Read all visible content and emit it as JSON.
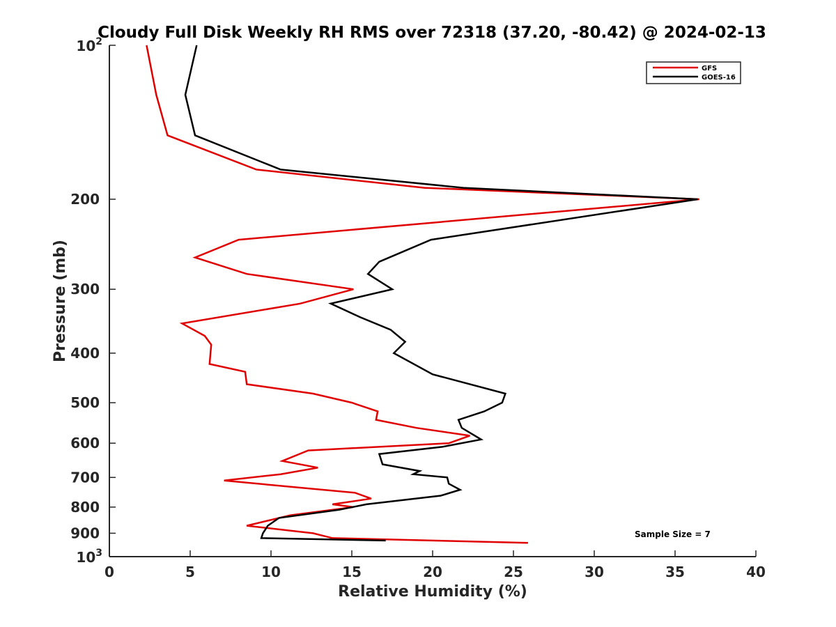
{
  "chart_data": {
    "type": "line",
    "title": "Cloudy Full Disk Weekly RH RMS over 72318 (37.20, -80.42) @ 2024-02-13",
    "xlabel": "Relative Humidity (%)",
    "ylabel": "Pressure (mb)",
    "xlim": [
      0,
      40
    ],
    "ylim": [
      100,
      1000
    ],
    "yscale": "log",
    "yreversed": true,
    "grid": false,
    "legend_position": "top-right",
    "x_ticks": [
      {
        "value": 0,
        "label": "0"
      },
      {
        "value": 5,
        "label": "5"
      },
      {
        "value": 10,
        "label": "10"
      },
      {
        "value": 15,
        "label": "15"
      },
      {
        "value": 20,
        "label": "20"
      },
      {
        "value": 25,
        "label": "25"
      },
      {
        "value": 30,
        "label": "30"
      },
      {
        "value": 35,
        "label": "35"
      },
      {
        "value": 40,
        "label": "40"
      }
    ],
    "y_ticks": [
      {
        "value": 100,
        "base": "10",
        "exp": "2"
      },
      {
        "value": 200,
        "label": "200"
      },
      {
        "value": 300,
        "label": "300"
      },
      {
        "value": 400,
        "label": "400"
      },
      {
        "value": 500,
        "label": "500"
      },
      {
        "value": 600,
        "label": "600"
      },
      {
        "value": 700,
        "label": "700"
      },
      {
        "value": 800,
        "label": "800"
      },
      {
        "value": 900,
        "label": "900"
      },
      {
        "value": 1000,
        "base": "10",
        "exp": "3"
      }
    ],
    "series": [
      {
        "name": "GFS",
        "color": "#e00000",
        "points": [
          [
            2.3,
            100
          ],
          [
            2.9,
            125
          ],
          [
            3.6,
            150
          ],
          [
            9.1,
            175
          ],
          [
            19.5,
            190
          ],
          [
            36.5,
            200
          ],
          [
            8.0,
            240
          ],
          [
            5.3,
            260
          ],
          [
            8.5,
            280
          ],
          [
            15.1,
            300
          ],
          [
            11.8,
            320
          ],
          [
            4.5,
            350
          ],
          [
            5.9,
            370
          ],
          [
            6.3,
            385
          ],
          [
            6.2,
            420
          ],
          [
            8.4,
            435
          ],
          [
            8.5,
            460
          ],
          [
            12.6,
            480
          ],
          [
            15.0,
            500
          ],
          [
            16.6,
            520
          ],
          [
            16.5,
            540
          ],
          [
            19.0,
            560
          ],
          [
            22.3,
            580
          ],
          [
            21.0,
            600
          ],
          [
            12.3,
            620
          ],
          [
            10.7,
            650
          ],
          [
            12.9,
            670
          ],
          [
            10.6,
            690
          ],
          [
            7.1,
            710
          ],
          [
            15.2,
            750
          ],
          [
            16.2,
            770
          ],
          [
            13.8,
            790
          ],
          [
            15.1,
            800
          ],
          [
            11.2,
            830
          ],
          [
            8.5,
            870
          ],
          [
            12.6,
            900
          ],
          [
            13.8,
            920
          ],
          [
            25.9,
            940
          ]
        ]
      },
      {
        "name": "GOES-16",
        "color": "#000000",
        "points": [
          [
            5.4,
            100
          ],
          [
            4.7,
            125
          ],
          [
            5.3,
            150
          ],
          [
            10.6,
            175
          ],
          [
            21.9,
            190
          ],
          [
            36.4,
            200
          ],
          [
            19.9,
            240
          ],
          [
            16.7,
            265
          ],
          [
            16.0,
            280
          ],
          [
            17.5,
            300
          ],
          [
            13.7,
            320
          ],
          [
            15.5,
            340
          ],
          [
            17.4,
            360
          ],
          [
            18.3,
            380
          ],
          [
            17.6,
            400
          ],
          [
            20.0,
            440
          ],
          [
            24.5,
            480
          ],
          [
            24.3,
            500
          ],
          [
            23.2,
            520
          ],
          [
            21.6,
            540
          ],
          [
            21.8,
            560
          ],
          [
            23.0,
            590
          ],
          [
            20.6,
            610
          ],
          [
            16.7,
            630
          ],
          [
            16.9,
            660
          ],
          [
            19.2,
            680
          ],
          [
            18.8,
            690
          ],
          [
            20.9,
            700
          ],
          [
            21.0,
            720
          ],
          [
            21.7,
            740
          ],
          [
            20.5,
            760
          ],
          [
            15.9,
            790
          ],
          [
            14.2,
            810
          ],
          [
            10.5,
            840
          ],
          [
            9.8,
            870
          ],
          [
            9.5,
            900
          ],
          [
            9.4,
            920
          ],
          [
            17.1,
            930
          ]
        ]
      }
    ],
    "annotation": "Sample Size = 7"
  }
}
